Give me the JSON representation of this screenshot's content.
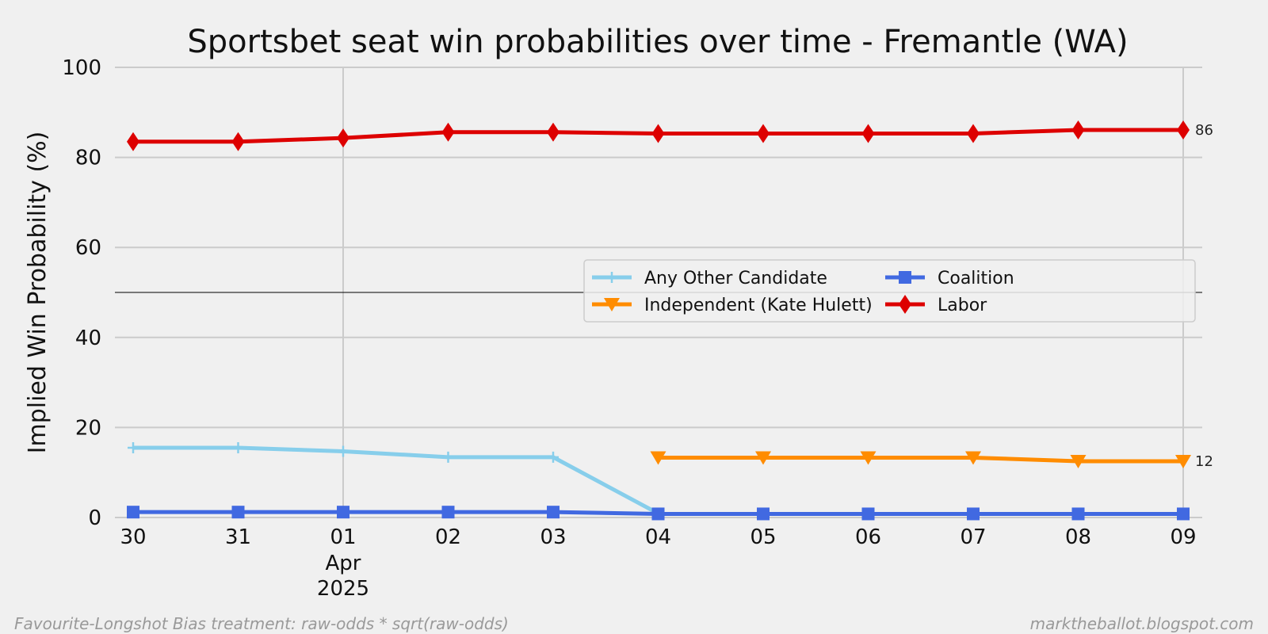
{
  "chart_data": {
    "type": "line",
    "title": "Sportsbet seat win probabilities over time - Fremantle (WA)",
    "ylabel": "Implied Win Probability (%)",
    "xlabel": "",
    "ylim": [
      0,
      100
    ],
    "yticks": [
      0,
      20,
      40,
      60,
      80,
      100
    ],
    "x": [
      "30",
      "31",
      "01",
      "02",
      "03",
      "04",
      "05",
      "06",
      "07",
      "08",
      "09"
    ],
    "x_sublabels": {
      "01": [
        "Apr",
        "2025"
      ]
    },
    "reference_line": 50,
    "grid": true,
    "legend_position": "center-right",
    "series": [
      {
        "name": "Any Other Candidate",
        "color": "#87ceeb",
        "marker": "plus",
        "values": [
          15.5,
          15.5,
          14.7,
          13.4,
          13.4,
          0.9,
          null,
          null,
          null,
          null,
          null
        ]
      },
      {
        "name": "Independent (Kate Hulett)",
        "color": "#ff8c00",
        "marker": "triangle-down",
        "values": [
          null,
          null,
          null,
          null,
          null,
          13.3,
          13.3,
          13.3,
          13.3,
          12.5,
          12.5
        ]
      },
      {
        "name": "Coalition",
        "color": "#4169e1",
        "marker": "square",
        "values": [
          1.2,
          1.2,
          1.2,
          1.2,
          1.2,
          0.8,
          0.8,
          0.8,
          0.8,
          0.8,
          0.8
        ]
      },
      {
        "name": "Labor",
        "color": "#dd0000",
        "marker": "diamond",
        "values": [
          83.5,
          83.5,
          84.3,
          85.6,
          85.6,
          85.3,
          85.3,
          85.3,
          85.3,
          86.1,
          86.1
        ]
      }
    ],
    "end_labels": [
      {
        "series": "Labor",
        "text": "86"
      },
      {
        "series": "Independent (Kate Hulett)",
        "text": "12"
      }
    ]
  },
  "footer": {
    "left": "Favourite-Longshot Bias treatment: raw-odds * sqrt(raw-odds)",
    "right": "marktheballot.blogspot.com"
  }
}
